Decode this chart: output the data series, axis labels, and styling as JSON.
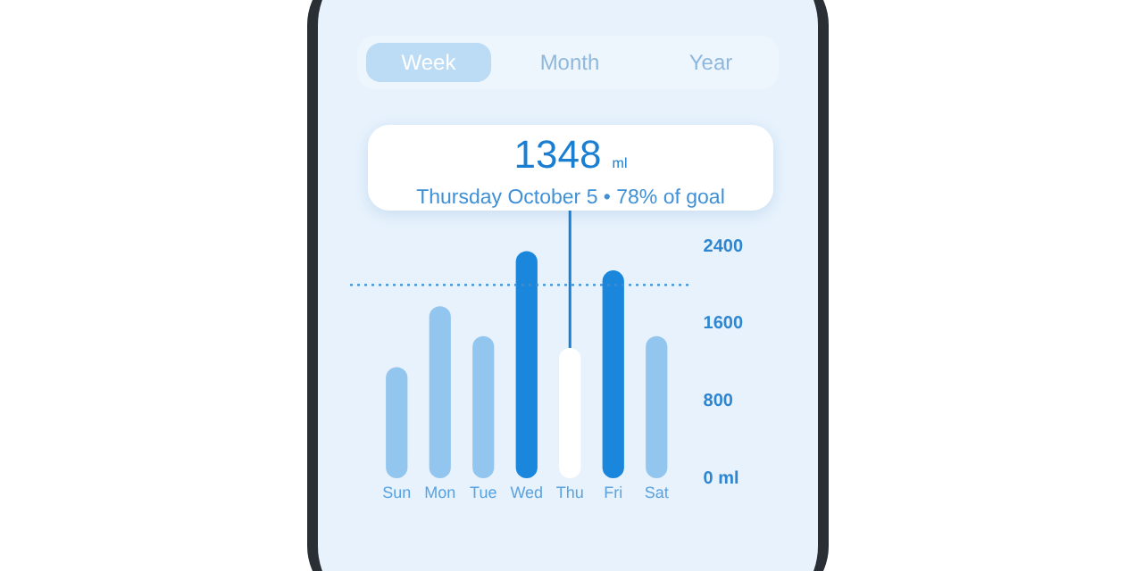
{
  "chart_data": {
    "type": "bar",
    "categories": [
      "Sun",
      "Mon",
      "Tue",
      "Wed",
      "Thu",
      "Fri",
      "Sat"
    ],
    "values": [
      1150,
      1780,
      1470,
      2350,
      1348,
      2150,
      1470
    ],
    "colors": [
      "#93c6ee",
      "#93c6ee",
      "#93c6ee",
      "#1a86dc",
      "#ffffff",
      "#1a86dc",
      "#93c6ee"
    ],
    "ylim": [
      0,
      2400
    ],
    "yticks": [
      {
        "value": 0,
        "label": "0 ml"
      },
      800,
      1600,
      2400
    ],
    "ref_lines": [
      {
        "axis": "y",
        "value": 2000,
        "color": "#3f8fd4",
        "line_style": "dotted"
      }
    ],
    "annotations": [
      "Week",
      "Month",
      "Year",
      {
        "text": "1348 ml",
        "x": "Thu",
        "y": 1348
      },
      "Thursday October 5 • 78% of goal"
    ]
  }
}
